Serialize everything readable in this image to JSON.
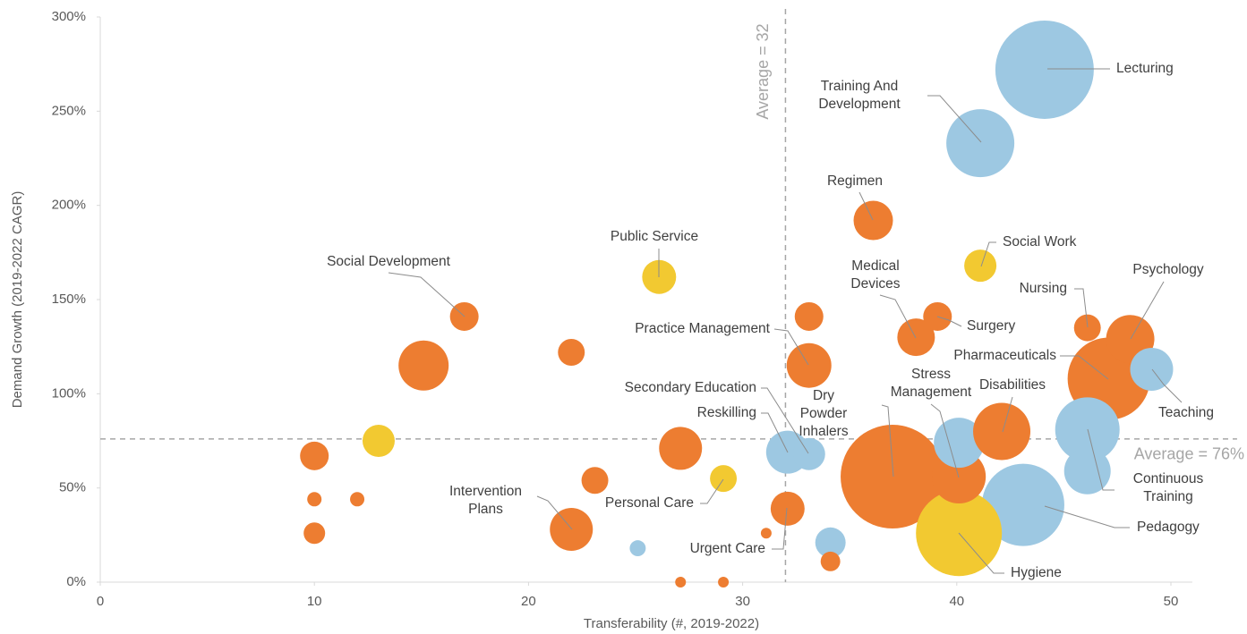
{
  "chart_data": {
    "type": "bubble",
    "x_label": "Transferability (#, 2019-2022)",
    "y_label": "Demand Growth (2019-2022 CAGR)",
    "xlim": [
      0,
      51
    ],
    "ylim": [
      0,
      300
    ],
    "xticks": [
      0,
      10,
      20,
      30,
      40,
      50
    ],
    "yticks": [
      {
        "value": 0,
        "label": "0%"
      },
      {
        "value": 50,
        "label": "50%"
      },
      {
        "value": 100,
        "label": "100%"
      },
      {
        "value": 150,
        "label": "150%"
      },
      {
        "value": 200,
        "label": "200%"
      },
      {
        "value": 250,
        "label": "250%"
      },
      {
        "value": 300,
        "label": "300%"
      }
    ],
    "reference_lines": [
      {
        "text": "Average = 32",
        "x": 32
      },
      {
        "text": "Average = 76%",
        "y": 76
      }
    ],
    "points": [
      {
        "label": "Dry Powder Inhalers",
        "x": 37,
        "y": 56,
        "size": 841,
        "color": "#ed7d31"
      },
      {
        "label": "Lecturing",
        "x": 44.1,
        "y": 272,
        "size": 756,
        "color": "#9dc8e2"
      },
      {
        "label": "Pharmaceuticals",
        "x": 47.1,
        "y": 108,
        "size": 529,
        "color": "#ed7d31"
      },
      {
        "x": 43.1,
        "y": 41,
        "size": 529,
        "color": "#9dc8e2"
      },
      {
        "label": "Hygiene",
        "x": 40.1,
        "y": 26,
        "size": 576,
        "color": "#f2c931"
      },
      {
        "label": "Training And Development",
        "x": 41.1,
        "y": 233,
        "size": 361,
        "color": "#9dc8e2"
      },
      {
        "label": "Continuous Training",
        "x": 46.1,
        "y": 81,
        "size": 324,
        "color": "#9dc8e2"
      },
      {
        "x": 46.1,
        "y": 59,
        "size": 169,
        "color": "#9dc8e2"
      },
      {
        "label": "Stress Management",
        "x": 40.1,
        "y": 56,
        "size": 225,
        "color": "#ed7d31"
      },
      {
        "x": 40.1,
        "y": 74,
        "size": 196,
        "color": "#9dc8e2"
      },
      {
        "label": "Disabilities",
        "x": 42.1,
        "y": 80,
        "size": 256,
        "color": "#ed7d31"
      },
      {
        "x": 15.1,
        "y": 115,
        "size": 196,
        "color": "#ed7d31"
      },
      {
        "label": "Psychology",
        "x": 48.1,
        "y": 129,
        "size": 182,
        "color": "#ed7d31"
      },
      {
        "label": "Teaching",
        "x": 49.1,
        "y": 113,
        "size": 144,
        "color": "#9dc8e2"
      },
      {
        "label": "Practice Management",
        "x": 33.1,
        "y": 115,
        "size": 156,
        "color": "#ed7d31"
      },
      {
        "x": 27.1,
        "y": 71,
        "size": 144,
        "color": "#ed7d31"
      },
      {
        "label": "Reskilling",
        "x": 32.1,
        "y": 69,
        "size": 144,
        "color": "#9dc8e2"
      },
      {
        "label": "Secondary Education",
        "x": 33.1,
        "y": 68,
        "size": 81,
        "color": "#9dc8e2"
      },
      {
        "label": "Intervention Plans",
        "x": 22,
        "y": 28,
        "size": 144,
        "color": "#ed7d31"
      },
      {
        "label": "Regimen",
        "x": 36.1,
        "y": 192,
        "size": 121,
        "color": "#ed7d31"
      },
      {
        "label": "Medical Devices",
        "x": 38.1,
        "y": 130,
        "size": 110,
        "color": "#ed7d31"
      },
      {
        "label": "Public Service",
        "x": 26.1,
        "y": 162,
        "size": 90,
        "color": "#f2c931"
      },
      {
        "label": "Social Work",
        "x": 41.1,
        "y": 168,
        "size": 81,
        "color": "#f2c931"
      },
      {
        "label": "Urgent Care",
        "x": 32.1,
        "y": 39,
        "size": 90,
        "color": "#ed7d31"
      },
      {
        "x": 13,
        "y": 75,
        "size": 81,
        "color": "#f2c931"
      },
      {
        "label": "Social Development",
        "x": 17,
        "y": 141,
        "size": 64,
        "color": "#ed7d31"
      },
      {
        "x": 33.1,
        "y": 141,
        "size": 64,
        "color": "#ed7d31"
      },
      {
        "label": "Surgery",
        "x": 39.1,
        "y": 141,
        "size": 64,
        "color": "#ed7d31"
      },
      {
        "x": 10,
        "y": 67,
        "size": 64,
        "color": "#ed7d31"
      },
      {
        "label": "Nursing",
        "x": 46.1,
        "y": 135,
        "size": 56,
        "color": "#ed7d31"
      },
      {
        "x": 22,
        "y": 122,
        "size": 56,
        "color": "#ed7d31"
      },
      {
        "x": 23.1,
        "y": 54,
        "size": 56,
        "color": "#ed7d31"
      },
      {
        "label": "Personal Care",
        "x": 29.1,
        "y": 55,
        "size": 56,
        "color": "#f2c931"
      },
      {
        "x": 34.1,
        "y": 21,
        "size": 72,
        "color": "#9dc8e2"
      },
      {
        "x": 34.1,
        "y": 11,
        "size": 30,
        "color": "#ed7d31"
      },
      {
        "label": "Pedagogy",
        "x": 44.1,
        "y": 40,
        "size": 36,
        "color": "#9dc8e2"
      },
      {
        "x": 10,
        "y": 26,
        "size": 36,
        "color": "#ed7d31"
      },
      {
        "x": 10,
        "y": 44,
        "size": 16,
        "color": "#ed7d31"
      },
      {
        "x": 12,
        "y": 44,
        "size": 16,
        "color": "#ed7d31"
      },
      {
        "x": 25.1,
        "y": 18,
        "size": 20,
        "color": "#9dc8e2"
      },
      {
        "x": 31.1,
        "y": 26,
        "size": 9,
        "color": "#ed7d31"
      },
      {
        "x": 27.1,
        "y": 0,
        "size": 9,
        "color": "#ed7d31"
      },
      {
        "x": 29.1,
        "y": 0,
        "size": 9,
        "color": "#ed7d31"
      }
    ]
  }
}
